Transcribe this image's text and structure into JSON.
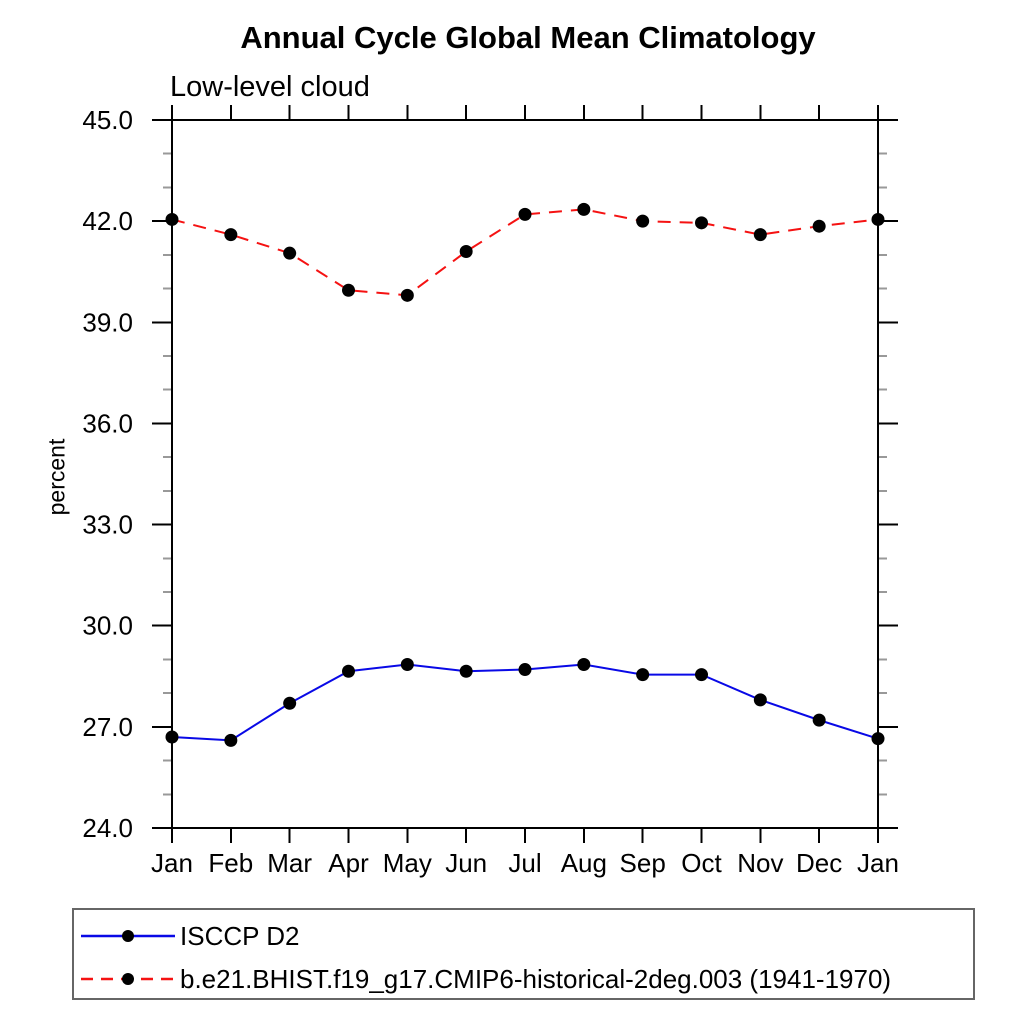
{
  "window": {
    "background": "#ffffff"
  },
  "chart_data": {
    "type": "line",
    "title": "Annual Cycle Global Mean Climatology",
    "subtitle": "Low-level cloud",
    "xlabel": "",
    "ylabel": "percent",
    "categories": [
      "Jan",
      "Feb",
      "Mar",
      "Apr",
      "May",
      "Jun",
      "Jul",
      "Aug",
      "Sep",
      "Oct",
      "Nov",
      "Dec",
      "Jan"
    ],
    "ylim": [
      24.0,
      45.0
    ],
    "ytick_values": [
      24,
      27,
      30,
      33,
      36,
      39,
      42,
      45
    ],
    "ytick_labels": [
      "24.0",
      "27.0",
      "30.0",
      "33.0",
      "36.0",
      "39.0",
      "42.0",
      "45.0"
    ],
    "minor_tick_interval": 1.0,
    "grid": false,
    "legend_position": "bottom-left-box",
    "axis_color": "#000000",
    "minor_tick_color": "#999999",
    "series": [
      {
        "name": "ISCCP D2",
        "color": "#0909e6",
        "line_style": "solid",
        "marker": "filled-circle",
        "marker_color": "#000000",
        "values": [
          26.7,
          26.6,
          27.7,
          28.65,
          28.85,
          28.65,
          28.7,
          28.85,
          28.55,
          28.55,
          27.8,
          27.2,
          26.65
        ]
      },
      {
        "name": "b.e21.BHIST.f19_g17.CMIP6-historical-2deg.003 (1941-1970)",
        "color": "#f51212",
        "line_style": "dashed",
        "marker": "filled-circle",
        "marker_color": "#000000",
        "values": [
          42.05,
          41.6,
          41.05,
          39.95,
          39.8,
          41.1,
          42.2,
          42.35,
          42.0,
          41.95,
          41.6,
          41.85,
          42.05
        ]
      }
    ]
  }
}
